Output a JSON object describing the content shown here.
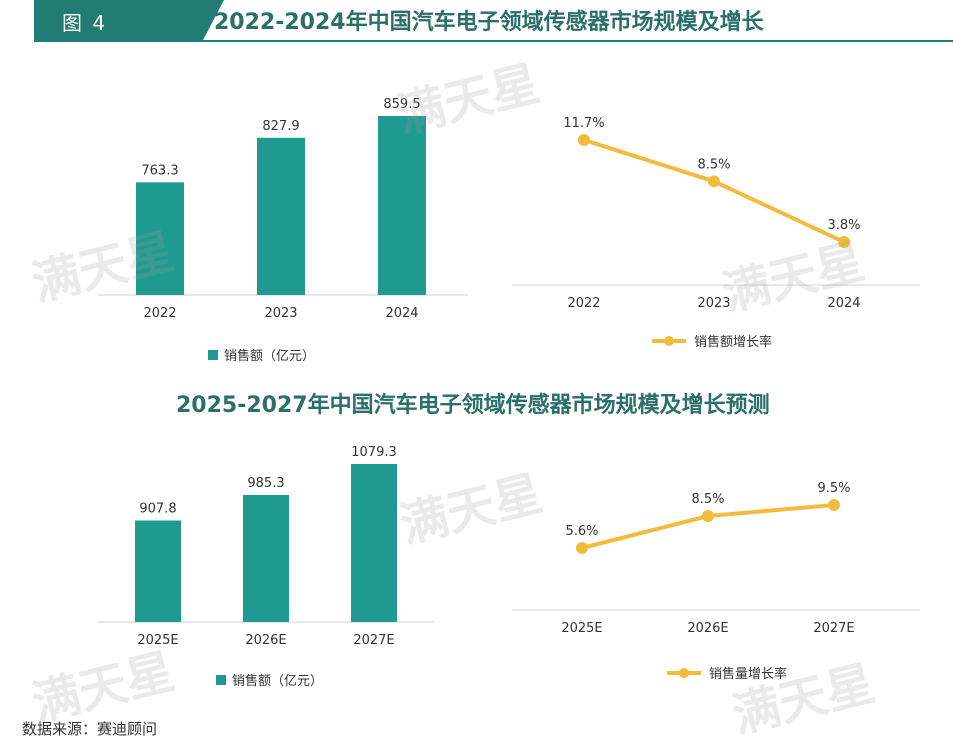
{
  "figure_label": "图 4",
  "title_top": "2022-2024年中国汽车电子领域传感器市场规模及增长",
  "title_bottom": "2025-2027年中国汽车电子领域传感器市场规模及增长预测",
  "source": "数据来源：赛迪顾问",
  "watermark": "满天星",
  "colors": {
    "bar": "#1f9a90",
    "line": "#f2bb3c",
    "title": "#2a6f6a",
    "tab": "#237c74"
  },
  "chart_data": [
    {
      "type": "bar",
      "categories": [
        "2022",
        "2023",
        "2024"
      ],
      "values": [
        763.3,
        827.9,
        859.5
      ],
      "value_labels": [
        "763.3",
        "827.9",
        "859.5"
      ],
      "legend": "销售额（亿元）",
      "legend_position": "bottom-left"
    },
    {
      "type": "line",
      "categories": [
        "2022",
        "2023",
        "2024"
      ],
      "values": [
        11.7,
        8.5,
        3.8
      ],
      "value_labels": [
        "11.7%",
        "8.5%",
        "3.8%"
      ],
      "legend": "销售额增长率",
      "legend_position": "bottom-center"
    },
    {
      "type": "bar",
      "categories": [
        "2025E",
        "2026E",
        "2027E"
      ],
      "values": [
        907.8,
        985.3,
        1079.3
      ],
      "value_labels": [
        "907.8",
        "985.3",
        "1079.3"
      ],
      "legend": "销售额（亿元）",
      "legend_position": "bottom-center"
    },
    {
      "type": "line",
      "categories": [
        "2025E",
        "2026E",
        "2027E"
      ],
      "values": [
        5.6,
        8.5,
        9.5
      ],
      "value_labels": [
        "5.6%",
        "8.5%",
        "9.5%"
      ],
      "legend": "销售量增长率",
      "legend_position": "bottom-center"
    }
  ]
}
